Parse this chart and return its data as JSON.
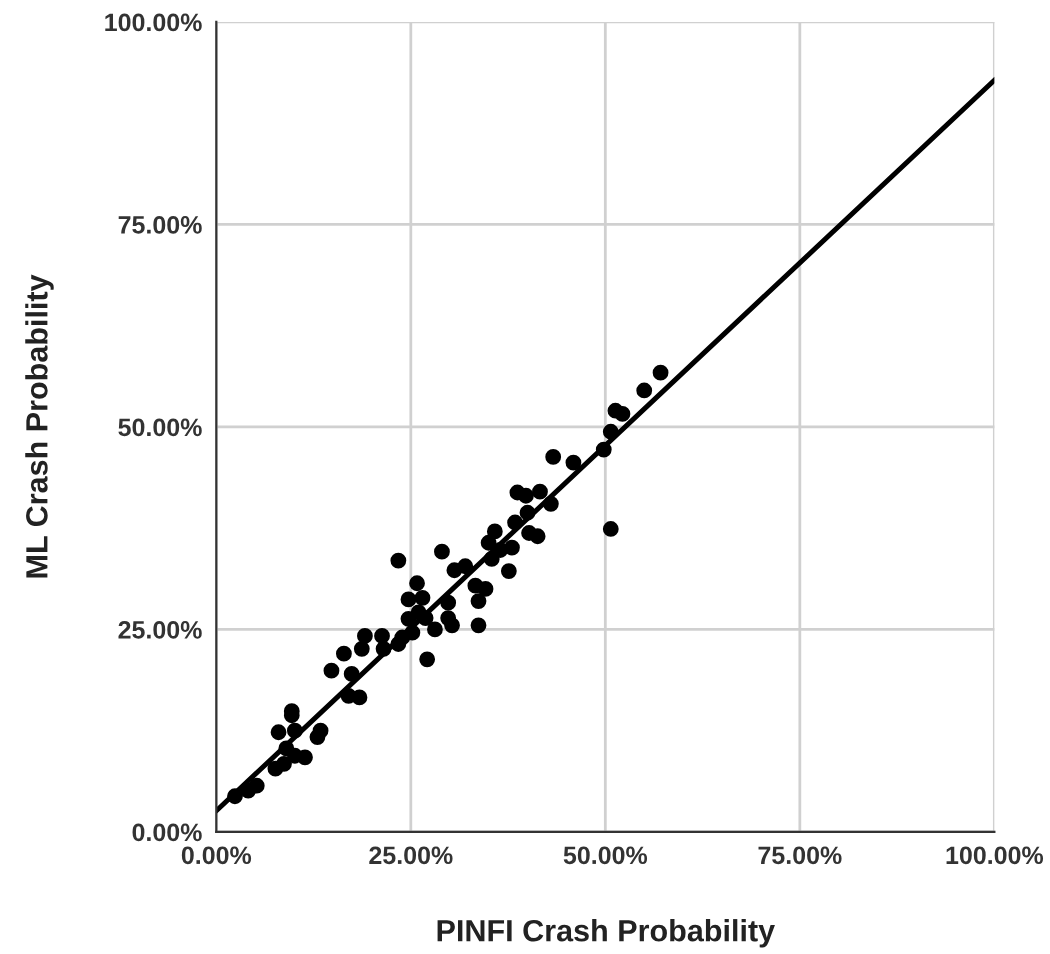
{
  "chart_data": {
    "type": "scatter",
    "xlabel": "PINFI Crash Probability",
    "ylabel": "ML Crash Probability",
    "xlim": [
      0,
      100
    ],
    "ylim": [
      0,
      100
    ],
    "xticks": [
      {
        "value": 0,
        "label": "0.00%"
      },
      {
        "value": 25,
        "label": "25.00%"
      },
      {
        "value": 50,
        "label": "50.00%"
      },
      {
        "value": 75,
        "label": "75.00%"
      },
      {
        "value": 100,
        "label": "100.00%"
      }
    ],
    "yticks": [
      {
        "value": 0,
        "label": "0.00%"
      },
      {
        "value": 25,
        "label": "25.00%"
      },
      {
        "value": 50,
        "label": "50.00%"
      },
      {
        "value": 75,
        "label": "75.00%"
      },
      {
        "value": 100,
        "label": "100.00%"
      }
    ],
    "grid": true,
    "marker": "circle",
    "series": [
      {
        "color": "#000000",
        "x": [
          2.4,
          5.2,
          4.1,
          7.6,
          8.0,
          8.7,
          9.0,
          9.7,
          9.7,
          10.1,
          10.1,
          11.4,
          13.0,
          13.4,
          14.8,
          16.4,
          17.0,
          17.4,
          18.4,
          18.7,
          19.1,
          21.3,
          21.5,
          23.4,
          23.4,
          23.9,
          24.7,
          24.7,
          25.2,
          25.8,
          26.5,
          26.0,
          27.1,
          26.9,
          28.1,
          29.0,
          29.8,
          29.8,
          30.3,
          30.6,
          32.0,
          33.3,
          33.7,
          33.7,
          34.6,
          35.0,
          35.4,
          35.8,
          36.5,
          37.6,
          38.0,
          38.4,
          38.7,
          39.8,
          40.0,
          40.2,
          41.3,
          41.6,
          43.0,
          43.3,
          45.9,
          49.8,
          50.7,
          50.7,
          51.3,
          52.2,
          55.0,
          57.1
        ],
        "values": [
          4.4,
          5.7,
          5.1,
          7.8,
          12.3,
          8.4,
          10.3,
          14.9,
          14.4,
          9.4,
          12.5,
          9.2,
          11.7,
          12.5,
          19.9,
          22.0,
          16.8,
          19.5,
          16.6,
          22.6,
          24.2,
          24.2,
          22.6,
          23.2,
          33.5,
          24.0,
          28.7,
          26.3,
          24.6,
          30.7,
          28.9,
          27.1,
          21.3,
          26.4,
          25.0,
          34.6,
          28.3,
          26.4,
          25.5,
          32.3,
          32.8,
          30.4,
          28.5,
          25.5,
          30.0,
          35.7,
          33.7,
          37.1,
          34.8,
          32.2,
          35.1,
          38.2,
          41.9,
          41.5,
          39.4,
          36.9,
          36.5,
          42.0,
          40.5,
          46.3,
          45.6,
          47.2,
          49.4,
          37.4,
          52.0,
          51.6,
          54.5,
          56.7
        ]
      },
      {
        "type": "line",
        "color": "#000000",
        "marker": "none",
        "x": [
          0,
          100
        ],
        "values": [
          2.6,
          92.8
        ]
      }
    ]
  }
}
